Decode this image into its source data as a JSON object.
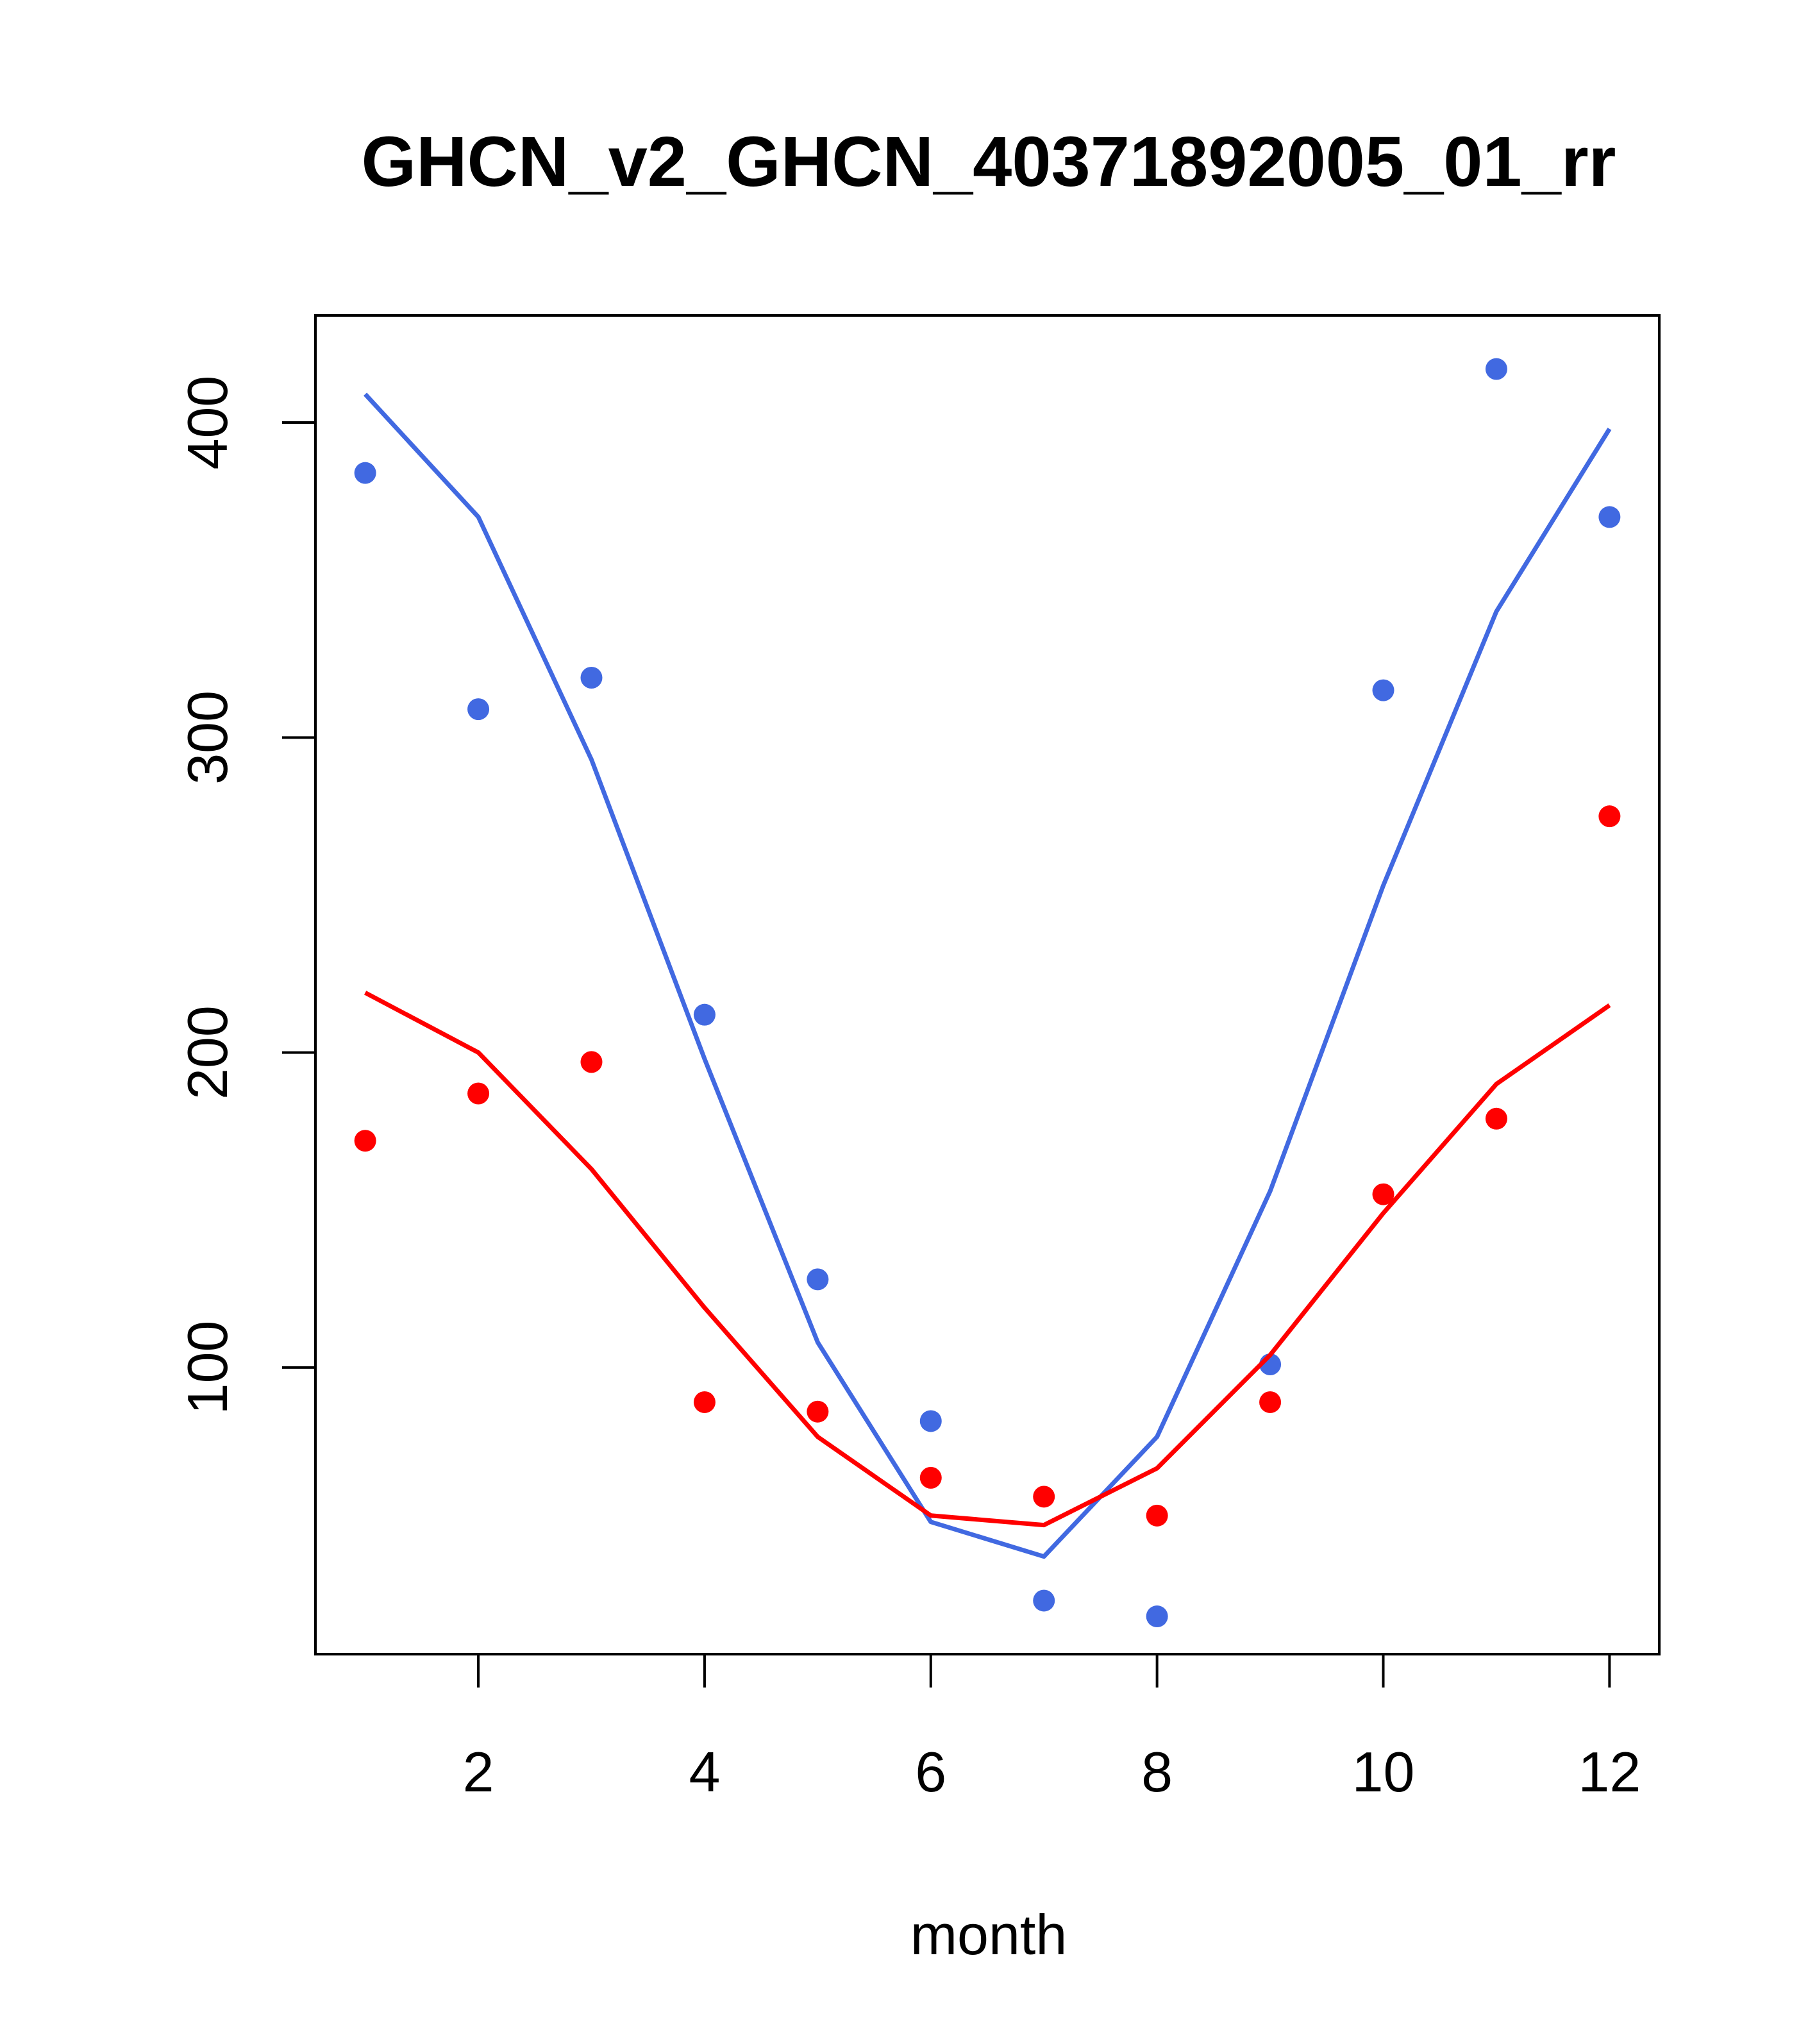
{
  "chart_data": {
    "type": "line",
    "title": "GHCN_v2_GHCN_40371892005_01_rr",
    "xlabel": "month",
    "ylabel": "",
    "xlim": [
      0.56,
      12.44
    ],
    "ylim": [
      9,
      434
    ],
    "x_ticks": [
      2,
      4,
      6,
      8,
      10,
      12
    ],
    "y_ticks": [
      100,
      200,
      300,
      400
    ],
    "grid": false,
    "legend": "none",
    "x": [
      1,
      2,
      3,
      4,
      5,
      6,
      7,
      8,
      9,
      10,
      11,
      12
    ],
    "series": [
      {
        "color": "#4169E1",
        "points": [
          384,
          309,
          319,
          212,
          128,
          83,
          26,
          21,
          101,
          315,
          417,
          370
        ],
        "line": [
          409,
          370,
          293,
          198,
          108,
          51,
          40,
          78,
          156,
          253,
          340,
          398
        ]
      },
      {
        "color": "#FF0000",
        "points": [
          172,
          187,
          197,
          89,
          86,
          65,
          59,
          53,
          89,
          155,
          179,
          275
        ],
        "line": [
          219,
          200,
          163,
          119,
          78,
          53,
          50,
          68,
          104,
          149,
          190,
          215
        ]
      }
    ]
  }
}
